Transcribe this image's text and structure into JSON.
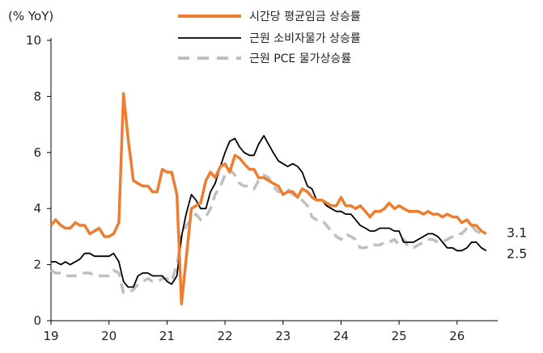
{
  "chart_data": {
    "type": "line",
    "unit_label": "(% YoY)",
    "ylim": [
      0,
      10
    ],
    "xlim": [
      19,
      26.7
    ],
    "y_ticks": [
      "0",
      "2",
      "4",
      "6",
      "8",
      "10"
    ],
    "x_ticks": [
      "19",
      "20",
      "21",
      "22",
      "23",
      "24",
      "25",
      "26"
    ],
    "grid": false,
    "legend_position": "top-center",
    "series": [
      {
        "name": "시간당 평균임금 상승률",
        "color": "#ED7D31",
        "style": "solid",
        "end_label": "3.1",
        "points": [
          [
            19.0,
            3.4
          ],
          [
            19.08,
            3.6
          ],
          [
            19.17,
            3.4
          ],
          [
            19.25,
            3.3
          ],
          [
            19.33,
            3.3
          ],
          [
            19.42,
            3.5
          ],
          [
            19.5,
            3.4
          ],
          [
            19.58,
            3.4
          ],
          [
            19.67,
            3.1
          ],
          [
            19.75,
            3.2
          ],
          [
            19.83,
            3.3
          ],
          [
            19.92,
            3.0
          ],
          [
            20.0,
            3.0
          ],
          [
            20.08,
            3.1
          ],
          [
            20.17,
            3.5
          ],
          [
            20.25,
            8.1
          ],
          [
            20.33,
            6.5
          ],
          [
            20.42,
            5.0
          ],
          [
            20.5,
            4.9
          ],
          [
            20.58,
            4.8
          ],
          [
            20.67,
            4.8
          ],
          [
            20.75,
            4.6
          ],
          [
            20.83,
            4.6
          ],
          [
            20.92,
            5.4
          ],
          [
            21.0,
            5.3
          ],
          [
            21.08,
            5.3
          ],
          [
            21.17,
            4.5
          ],
          [
            21.25,
            0.6
          ],
          [
            21.33,
            2.2
          ],
          [
            21.42,
            4.0
          ],
          [
            21.5,
            4.1
          ],
          [
            21.58,
            4.2
          ],
          [
            21.67,
            5.0
          ],
          [
            21.75,
            5.3
          ],
          [
            21.83,
            5.1
          ],
          [
            21.92,
            5.5
          ],
          [
            22.0,
            5.6
          ],
          [
            22.08,
            5.3
          ],
          [
            22.17,
            5.9
          ],
          [
            22.25,
            5.8
          ],
          [
            22.33,
            5.6
          ],
          [
            22.42,
            5.4
          ],
          [
            22.5,
            5.4
          ],
          [
            22.58,
            5.1
          ],
          [
            22.67,
            5.1
          ],
          [
            22.75,
            5.0
          ],
          [
            22.83,
            4.9
          ],
          [
            22.92,
            4.8
          ],
          [
            23.0,
            4.5
          ],
          [
            23.08,
            4.6
          ],
          [
            23.17,
            4.6
          ],
          [
            23.25,
            4.4
          ],
          [
            23.33,
            4.7
          ],
          [
            23.42,
            4.6
          ],
          [
            23.5,
            4.4
          ],
          [
            23.58,
            4.3
          ],
          [
            23.67,
            4.3
          ],
          [
            23.75,
            4.2
          ],
          [
            23.83,
            4.1
          ],
          [
            23.92,
            4.1
          ],
          [
            24.0,
            4.4
          ],
          [
            24.08,
            4.1
          ],
          [
            24.17,
            4.1
          ],
          [
            24.25,
            4.0
          ],
          [
            24.33,
            4.1
          ],
          [
            24.42,
            3.9
          ],
          [
            24.5,
            3.7
          ],
          [
            24.58,
            3.9
          ],
          [
            24.67,
            3.9
          ],
          [
            24.75,
            4.0
          ],
          [
            24.83,
            4.2
          ],
          [
            24.92,
            4.0
          ],
          [
            25.0,
            4.1
          ],
          [
            25.08,
            4.0
          ],
          [
            25.17,
            3.9
          ],
          [
            25.25,
            3.9
          ],
          [
            25.33,
            3.9
          ],
          [
            25.42,
            3.8
          ],
          [
            25.5,
            3.9
          ],
          [
            25.58,
            3.8
          ],
          [
            25.67,
            3.8
          ],
          [
            25.75,
            3.7
          ],
          [
            25.83,
            3.8
          ],
          [
            25.92,
            3.7
          ],
          [
            26.0,
            3.7
          ],
          [
            26.08,
            3.5
          ],
          [
            26.17,
            3.6
          ],
          [
            26.25,
            3.4
          ],
          [
            26.33,
            3.4
          ],
          [
            26.42,
            3.2
          ],
          [
            26.5,
            3.1
          ]
        ]
      },
      {
        "name": "근원 소비자물가 상승률",
        "color": "#000000",
        "style": "solid",
        "end_label": "2.5",
        "points": [
          [
            19.0,
            2.1
          ],
          [
            19.08,
            2.1
          ],
          [
            19.17,
            2.0
          ],
          [
            19.25,
            2.1
          ],
          [
            19.33,
            2.0
          ],
          [
            19.42,
            2.1
          ],
          [
            19.5,
            2.2
          ],
          [
            19.58,
            2.4
          ],
          [
            19.67,
            2.4
          ],
          [
            19.75,
            2.3
          ],
          [
            19.83,
            2.3
          ],
          [
            19.92,
            2.3
          ],
          [
            20.0,
            2.3
          ],
          [
            20.08,
            2.4
          ],
          [
            20.17,
            2.1
          ],
          [
            20.25,
            1.4
          ],
          [
            20.33,
            1.2
          ],
          [
            20.42,
            1.2
          ],
          [
            20.5,
            1.6
          ],
          [
            20.58,
            1.7
          ],
          [
            20.67,
            1.7
          ],
          [
            20.75,
            1.6
          ],
          [
            20.83,
            1.6
          ],
          [
            20.92,
            1.6
          ],
          [
            21.0,
            1.4
          ],
          [
            21.08,
            1.3
          ],
          [
            21.17,
            1.6
          ],
          [
            21.25,
            3.0
          ],
          [
            21.33,
            3.8
          ],
          [
            21.42,
            4.5
          ],
          [
            21.5,
            4.3
          ],
          [
            21.58,
            4.0
          ],
          [
            21.67,
            4.0
          ],
          [
            21.75,
            4.6
          ],
          [
            21.83,
            4.9
          ],
          [
            21.92,
            5.5
          ],
          [
            22.0,
            6.0
          ],
          [
            22.08,
            6.4
          ],
          [
            22.17,
            6.5
          ],
          [
            22.25,
            6.2
          ],
          [
            22.33,
            6.0
          ],
          [
            22.42,
            5.9
          ],
          [
            22.5,
            5.9
          ],
          [
            22.58,
            6.3
          ],
          [
            22.67,
            6.6
          ],
          [
            22.75,
            6.3
          ],
          [
            22.83,
            6.0
          ],
          [
            22.92,
            5.7
          ],
          [
            23.0,
            5.6
          ],
          [
            23.08,
            5.5
          ],
          [
            23.17,
            5.6
          ],
          [
            23.25,
            5.5
          ],
          [
            23.33,
            5.3
          ],
          [
            23.42,
            4.8
          ],
          [
            23.5,
            4.7
          ],
          [
            23.58,
            4.3
          ],
          [
            23.67,
            4.3
          ],
          [
            23.75,
            4.1
          ],
          [
            23.83,
            4.0
          ],
          [
            23.92,
            3.9
          ],
          [
            24.0,
            3.9
          ],
          [
            24.08,
            3.8
          ],
          [
            24.17,
            3.8
          ],
          [
            24.25,
            3.6
          ],
          [
            24.33,
            3.4
          ],
          [
            24.42,
            3.3
          ],
          [
            24.5,
            3.2
          ],
          [
            24.58,
            3.2
          ],
          [
            24.67,
            3.3
          ],
          [
            24.75,
            3.3
          ],
          [
            24.83,
            3.3
          ],
          [
            24.92,
            3.2
          ],
          [
            25.0,
            3.2
          ],
          [
            25.08,
            2.8
          ],
          [
            25.17,
            2.8
          ],
          [
            25.25,
            2.8
          ],
          [
            25.33,
            2.9
          ],
          [
            25.42,
            3.0
          ],
          [
            25.5,
            3.1
          ],
          [
            25.58,
            3.1
          ],
          [
            25.67,
            3.0
          ],
          [
            25.75,
            2.8
          ],
          [
            25.83,
            2.6
          ],
          [
            25.92,
            2.6
          ],
          [
            26.0,
            2.5
          ],
          [
            26.08,
            2.5
          ],
          [
            26.17,
            2.6
          ],
          [
            26.25,
            2.8
          ],
          [
            26.33,
            2.8
          ],
          [
            26.42,
            2.6
          ],
          [
            26.5,
            2.5
          ]
        ]
      },
      {
        "name": "근원 PCE 물가상승률",
        "color": "#BFBFBF",
        "style": "dashed",
        "points": [
          [
            19.0,
            1.8
          ],
          [
            19.08,
            1.7
          ],
          [
            19.17,
            1.7
          ],
          [
            19.25,
            1.6
          ],
          [
            19.33,
            1.6
          ],
          [
            19.42,
            1.6
          ],
          [
            19.5,
            1.7
          ],
          [
            19.58,
            1.7
          ],
          [
            19.67,
            1.7
          ],
          [
            19.75,
            1.6
          ],
          [
            19.83,
            1.6
          ],
          [
            19.92,
            1.6
          ],
          [
            20.0,
            1.6
          ],
          [
            20.08,
            1.8
          ],
          [
            20.17,
            1.7
          ],
          [
            20.25,
            1.0
          ],
          [
            20.33,
            1.0
          ],
          [
            20.42,
            1.1
          ],
          [
            20.5,
            1.3
          ],
          [
            20.58,
            1.4
          ],
          [
            20.67,
            1.5
          ],
          [
            20.75,
            1.4
          ],
          [
            20.83,
            1.4
          ],
          [
            20.92,
            1.5
          ],
          [
            21.0,
            1.5
          ],
          [
            21.08,
            1.4
          ],
          [
            21.17,
            2.0
          ],
          [
            21.25,
            3.0
          ],
          [
            21.33,
            3.4
          ],
          [
            21.42,
            3.6
          ],
          [
            21.5,
            3.8
          ],
          [
            21.58,
            3.6
          ],
          [
            21.67,
            3.7
          ],
          [
            21.75,
            4.0
          ],
          [
            21.83,
            4.5
          ],
          [
            21.92,
            4.8
          ],
          [
            22.0,
            5.2
          ],
          [
            22.08,
            5.4
          ],
          [
            22.17,
            5.2
          ],
          [
            22.25,
            4.9
          ],
          [
            22.33,
            4.8
          ],
          [
            22.42,
            4.8
          ],
          [
            22.5,
            4.7
          ],
          [
            22.58,
            5.0
          ],
          [
            22.67,
            5.2
          ],
          [
            22.75,
            5.1
          ],
          [
            22.83,
            4.8
          ],
          [
            22.92,
            4.6
          ],
          [
            23.0,
            4.6
          ],
          [
            23.08,
            4.7
          ],
          [
            23.17,
            4.5
          ],
          [
            23.25,
            4.4
          ],
          [
            23.33,
            4.3
          ],
          [
            23.42,
            4.1
          ],
          [
            23.5,
            3.7
          ],
          [
            23.58,
            3.6
          ],
          [
            23.67,
            3.6
          ],
          [
            23.75,
            3.4
          ],
          [
            23.83,
            3.2
          ],
          [
            23.92,
            3.0
          ],
          [
            24.0,
            2.9
          ],
          [
            24.08,
            3.1
          ],
          [
            24.17,
            3.0
          ],
          [
            24.25,
            2.9
          ],
          [
            24.33,
            2.6
          ],
          [
            24.42,
            2.6
          ],
          [
            24.5,
            2.7
          ],
          [
            24.58,
            2.7
          ],
          [
            24.67,
            2.7
          ],
          [
            24.75,
            2.8
          ],
          [
            24.83,
            2.8
          ],
          [
            24.92,
            2.9
          ],
          [
            25.0,
            2.7
          ],
          [
            25.08,
            2.9
          ],
          [
            25.17,
            2.6
          ],
          [
            25.25,
            2.6
          ],
          [
            25.33,
            2.7
          ],
          [
            25.42,
            2.8
          ],
          [
            25.5,
            2.9
          ],
          [
            25.58,
            2.9
          ],
          [
            25.67,
            2.8
          ],
          [
            25.75,
            2.8
          ],
          [
            25.83,
            2.9
          ],
          [
            25.92,
            3.0
          ],
          [
            26.0,
            3.1
          ],
          [
            26.08,
            3.1
          ],
          [
            26.17,
            3.3
          ],
          [
            26.25,
            3.4
          ],
          [
            26.33,
            3.2
          ],
          [
            26.42,
            3.1
          ]
        ]
      }
    ]
  }
}
